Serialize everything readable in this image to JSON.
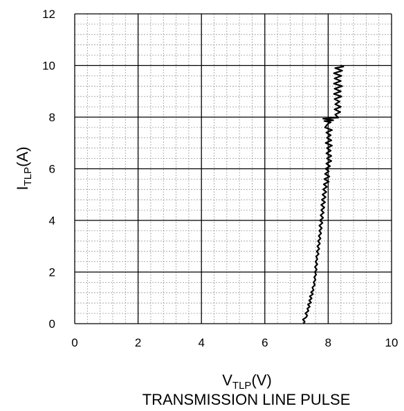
{
  "chart_data": {
    "type": "line",
    "caption": "TRANSMISSION LINE PULSE",
    "xlabel": {
      "main": "V",
      "sub": "TLP",
      "unit": "(V)"
    },
    "ylabel": {
      "main": "I",
      "sub": "TLP",
      "unit": "(A)"
    },
    "xlim": [
      0,
      10
    ],
    "ylim": [
      0,
      12
    ],
    "xticks": [
      0,
      2,
      4,
      6,
      8,
      10
    ],
    "yticks": [
      0,
      2,
      4,
      6,
      8,
      10,
      12
    ],
    "xminor": 0.4,
    "yminor": 0.4,
    "grid": true,
    "series": [
      {
        "color": "#000000",
        "points": [
          [
            7.22,
            0.0
          ],
          [
            7.26,
            0.08
          ],
          [
            7.2,
            0.16
          ],
          [
            7.3,
            0.24
          ],
          [
            7.34,
            0.32
          ],
          [
            7.28,
            0.4
          ],
          [
            7.38,
            0.5
          ],
          [
            7.34,
            0.58
          ],
          [
            7.42,
            0.66
          ],
          [
            7.36,
            0.74
          ],
          [
            7.46,
            0.82
          ],
          [
            7.4,
            0.9
          ],
          [
            7.48,
            0.98
          ],
          [
            7.42,
            1.06
          ],
          [
            7.52,
            1.14
          ],
          [
            7.46,
            1.22
          ],
          [
            7.54,
            1.3
          ],
          [
            7.5,
            1.4
          ],
          [
            7.58,
            1.5
          ],
          [
            7.54,
            1.6
          ],
          [
            7.6,
            1.7
          ],
          [
            7.56,
            1.8
          ],
          [
            7.62,
            1.9
          ],
          [
            7.58,
            2.0
          ],
          [
            7.64,
            2.1
          ],
          [
            7.58,
            2.2
          ],
          [
            7.66,
            2.3
          ],
          [
            7.6,
            2.4
          ],
          [
            7.66,
            2.5
          ],
          [
            7.62,
            2.6
          ],
          [
            7.7,
            2.7
          ],
          [
            7.64,
            2.8
          ],
          [
            7.72,
            2.9
          ],
          [
            7.66,
            3.0
          ],
          [
            7.74,
            3.1
          ],
          [
            7.68,
            3.2
          ],
          [
            7.76,
            3.3
          ],
          [
            7.7,
            3.4
          ],
          [
            7.78,
            3.5
          ],
          [
            7.72,
            3.6
          ],
          [
            7.8,
            3.7
          ],
          [
            7.72,
            3.8
          ],
          [
            7.82,
            3.9
          ],
          [
            7.74,
            4.0
          ],
          [
            7.84,
            4.1
          ],
          [
            7.76,
            4.2
          ],
          [
            7.86,
            4.3
          ],
          [
            7.78,
            4.4
          ],
          [
            7.88,
            4.5
          ],
          [
            7.78,
            4.6
          ],
          [
            7.9,
            4.7
          ],
          [
            7.8,
            4.8
          ],
          [
            7.92,
            4.9
          ],
          [
            7.82,
            5.0
          ],
          [
            7.94,
            5.1
          ],
          [
            7.84,
            5.2
          ],
          [
            7.96,
            5.3
          ],
          [
            7.86,
            5.4
          ],
          [
            8.02,
            5.5
          ],
          [
            7.88,
            5.6
          ],
          [
            8.04,
            5.7
          ],
          [
            7.9,
            5.8
          ],
          [
            8.02,
            5.9
          ],
          [
            7.92,
            6.0
          ],
          [
            8.06,
            6.1
          ],
          [
            7.94,
            6.2
          ],
          [
            8.1,
            6.3
          ],
          [
            7.96,
            6.4
          ],
          [
            8.1,
            6.5
          ],
          [
            7.94,
            6.6
          ],
          [
            8.08,
            6.7
          ],
          [
            7.96,
            6.8
          ],
          [
            8.12,
            6.9
          ],
          [
            7.92,
            7.0
          ],
          [
            8.1,
            7.1
          ],
          [
            7.96,
            7.2
          ],
          [
            8.08,
            7.3
          ],
          [
            7.94,
            7.4
          ],
          [
            8.12,
            7.5
          ],
          [
            7.9,
            7.6
          ],
          [
            7.96,
            7.7
          ],
          [
            8.0,
            7.75
          ],
          [
            8.08,
            7.8
          ],
          [
            7.88,
            7.85
          ],
          [
            8.16,
            7.88
          ],
          [
            7.84,
            7.94
          ],
          [
            8.32,
            7.98
          ],
          [
            8.22,
            8.1
          ],
          [
            8.38,
            8.2
          ],
          [
            8.2,
            8.3
          ],
          [
            8.4,
            8.4
          ],
          [
            8.22,
            8.5
          ],
          [
            8.36,
            8.6
          ],
          [
            8.2,
            8.7
          ],
          [
            8.42,
            8.8
          ],
          [
            8.18,
            8.9
          ],
          [
            8.4,
            9.0
          ],
          [
            8.2,
            9.1
          ],
          [
            8.44,
            9.2
          ],
          [
            8.18,
            9.3
          ],
          [
            8.4,
            9.4
          ],
          [
            8.2,
            9.5
          ],
          [
            8.42,
            9.6
          ],
          [
            8.18,
            9.7
          ],
          [
            8.44,
            9.8
          ],
          [
            8.22,
            9.9
          ],
          [
            8.48,
            9.96
          ],
          [
            8.4,
            10.0
          ]
        ]
      }
    ]
  }
}
